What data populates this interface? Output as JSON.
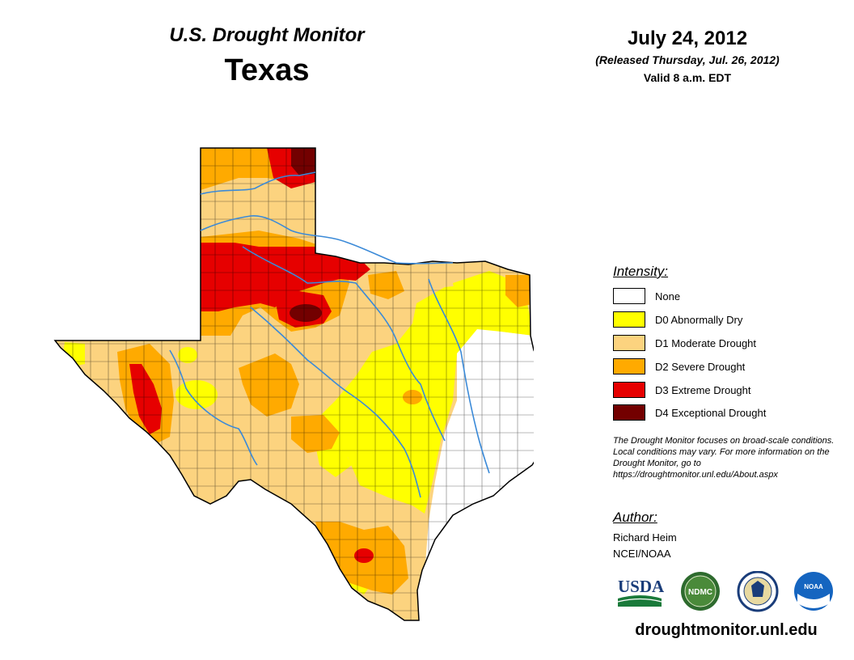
{
  "header": {
    "title": "U.S. Drought Monitor",
    "state": "Texas",
    "date": "July 24, 2012",
    "released": "(Released Thursday, Jul. 26, 2012)",
    "valid": "Valid 8 a.m. EDT"
  },
  "legend": {
    "title": "Intensity:",
    "items": [
      {
        "label": "None",
        "color": "#ffffff"
      },
      {
        "label": "D0 Abnormally Dry",
        "color": "#ffff00"
      },
      {
        "label": "D1 Moderate Drought",
        "color": "#fcd37f"
      },
      {
        "label": "D2 Severe Drought",
        "color": "#ffaa00"
      },
      {
        "label": "D3 Extreme Drought",
        "color": "#e60000"
      },
      {
        "label": "D4 Exceptional Drought",
        "color": "#730000"
      }
    ]
  },
  "note": "The Drought Monitor focuses on broad-scale conditions. Local conditions may vary. For more information on the Drought Monitor, go to https://droughtmonitor.unl.edu/About.aspx",
  "author": {
    "title": "Author:",
    "name": "Richard Heim",
    "org": "NCEI/NOAA"
  },
  "logos": [
    {
      "name": "usda-logo",
      "text": "USDA"
    },
    {
      "name": "ndmc-logo",
      "text": "NDMC"
    },
    {
      "name": "doc-seal",
      "text": ""
    },
    {
      "name": "noaa-logo",
      "text": "NOAA"
    }
  ],
  "url": "droughtmonitor.unl.edu",
  "colors": {
    "river": "#3b8ad8",
    "county_line": "#000000"
  }
}
